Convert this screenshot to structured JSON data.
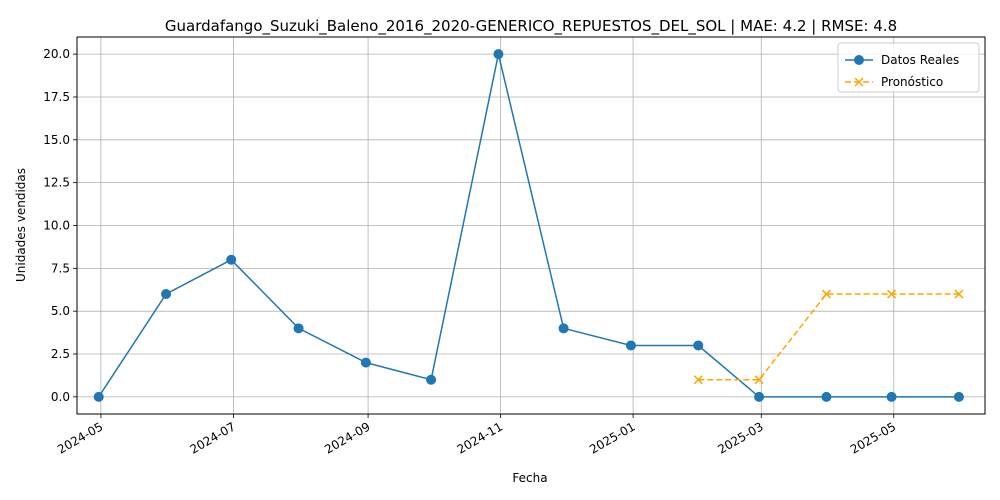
{
  "chart_data": {
    "type": "line",
    "title": "Guardafango_Suzuki_Baleno_2016_2020-GENERICO_REPUESTOS_DEL_SOL | MAE: 4.2 | RMSE: 4.8",
    "xlabel": "Fecha",
    "ylabel": "Unidades vendidas",
    "x_ticks": [
      "2024-05",
      "2024-07",
      "2024-09",
      "2024-11",
      "2025-01",
      "2025-03",
      "2025-05"
    ],
    "y_ticks": [
      "0.0",
      "2.5",
      "5.0",
      "7.5",
      "10.0",
      "12.5",
      "15.0",
      "17.5",
      "20.0"
    ],
    "xlim": [
      "2024-04-20",
      "2025-06-12"
    ],
    "ylim": [
      -1,
      21
    ],
    "grid": true,
    "legend_position": "top-right",
    "series": [
      {
        "name": "Datos Reales",
        "color": "#1f77b4",
        "linestyle": "solid",
        "marker": "circle",
        "x": [
          "2024-04-30",
          "2024-05-31",
          "2024-06-30",
          "2024-07-31",
          "2024-08-31",
          "2024-09-30",
          "2024-10-31",
          "2024-11-30",
          "2024-12-31",
          "2025-01-31",
          "2025-02-28",
          "2025-03-31",
          "2025-04-30",
          "2025-05-31"
        ],
        "values": [
          0,
          6,
          8,
          4,
          2,
          1,
          20,
          4,
          3,
          3,
          0,
          0,
          0,
          0
        ]
      },
      {
        "name": "Pronóstico",
        "color": "#ffa500",
        "linestyle": "dashed",
        "marker": "x",
        "x": [
          "2025-01-31",
          "2025-02-28",
          "2025-03-31",
          "2025-04-30",
          "2025-05-31"
        ],
        "values": [
          1,
          1,
          6,
          6,
          6
        ]
      }
    ]
  }
}
